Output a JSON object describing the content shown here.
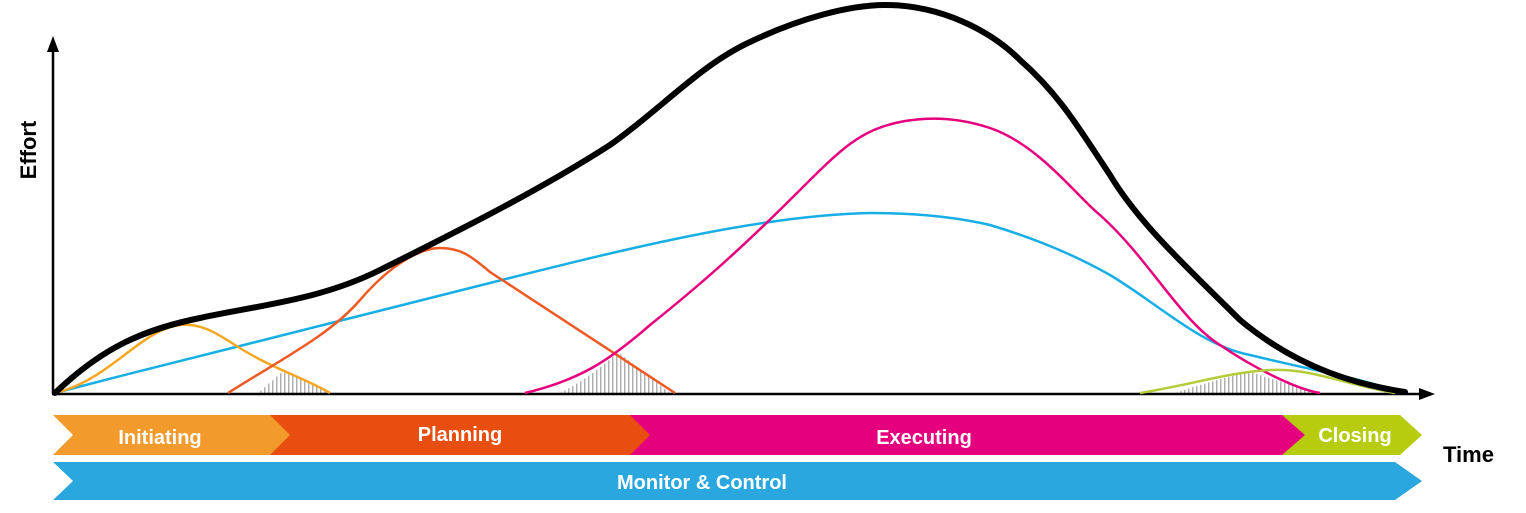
{
  "axes": {
    "y_label": "Effort",
    "x_label": "Time"
  },
  "phases": [
    {
      "label": "Initiating",
      "color": "#f39a2d"
    },
    {
      "label": "Planning",
      "color": "#e84e0f"
    },
    {
      "label": "Executing",
      "color": "#e5007d"
    },
    {
      "label": "Closing",
      "color": "#b7cc0e"
    }
  ],
  "monitor": {
    "label": "Monitor & Control",
    "color": "#2ba7e0"
  },
  "curve_colors": {
    "total": "#000000",
    "monitor": "#17aee6",
    "initiating": "#f5a623",
    "planning": "#ee5a24",
    "executing": "#e6007e",
    "closing": "#b5cc3a",
    "overlap_hatch": "#b0b0b0"
  }
}
